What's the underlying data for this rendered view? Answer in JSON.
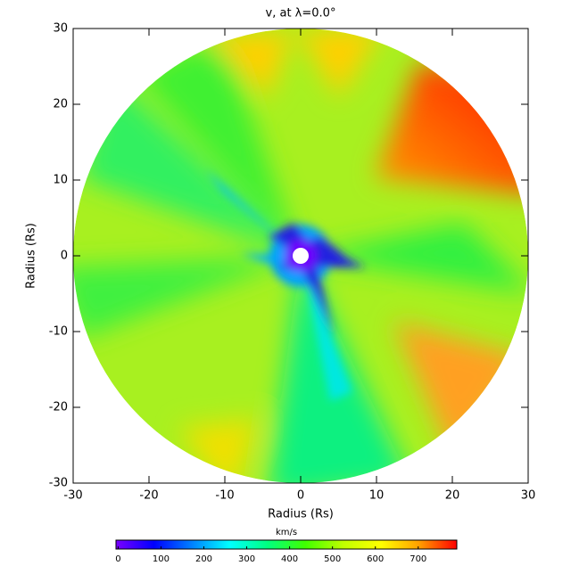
{
  "chart_data": {
    "type": "polar-map",
    "title": "v, at λ=0.0°",
    "xlabel": "Radius (Rs)",
    "ylabel": "Radius (Rs)",
    "xlim": [
      -30,
      30
    ],
    "ylim": [
      -30,
      30
    ],
    "xticks": [
      -30,
      -20,
      -10,
      0,
      10,
      20,
      30
    ],
    "yticks": [
      -30,
      -20,
      -10,
      0,
      10,
      20,
      30
    ],
    "colorbar": {
      "label": "km/s",
      "lim": [
        -5,
        790
      ],
      "ticks": [
        0,
        100,
        200,
        300,
        400,
        500,
        600,
        700
      ],
      "colormap": [
        "#7a00ff",
        "#0000ff",
        "#0080ff",
        "#00ffff",
        "#00ff80",
        "#40ff00",
        "#c0ff00",
        "#ffff00",
        "#ffa000",
        "#ff0000"
      ]
    }
  }
}
